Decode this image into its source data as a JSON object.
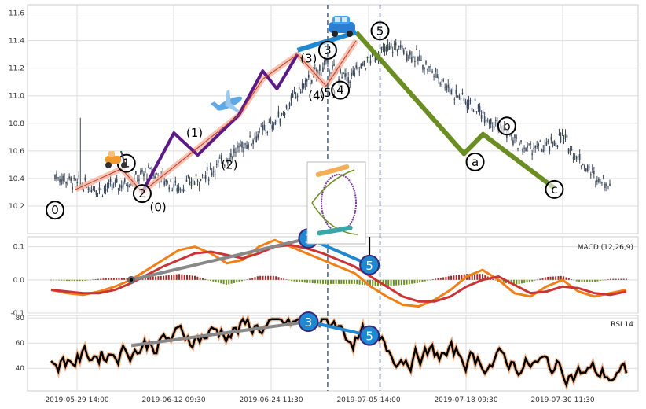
{
  "chart_data": [
    {
      "type": "candlestick",
      "panel": "price",
      "ylim": [
        10.0,
        11.66
      ],
      "yticks": [
        10.2,
        10.4,
        10.6,
        10.8,
        11.0,
        11.2,
        11.4,
        11.6
      ],
      "x_tick_labels": [
        "2019-05-29 14:00",
        "2019-06-12 09:30",
        "2019-06-24 11:30",
        "2019-07-05 14:00",
        "2019-07-18 09:30",
        "2019-07-30 11:30"
      ],
      "trend": {
        "x": [
          0,
          15,
          30,
          45,
          60,
          78,
          95,
          108,
          118,
          128,
          140,
          155,
          170,
          185,
          200,
          215,
          228,
          240,
          252,
          265,
          280,
          295,
          310,
          320,
          330,
          340,
          350
        ],
        "y": [
          10.42,
          10.36,
          10.32,
          10.37,
          10.45,
          10.33,
          10.42,
          10.55,
          10.63,
          10.72,
          10.82,
          11.05,
          11.22,
          11.12,
          11.28,
          11.36,
          11.28,
          11.16,
          11.02,
          10.92,
          10.78,
          10.62,
          10.62,
          10.7,
          10.55,
          10.42,
          10.36
        ]
      },
      "wave_lines": [
        {
          "name": "salmon",
          "color": "#f4b9a4",
          "points": [
            [
              13,
              10.32
            ],
            [
              42,
              10.47
            ],
            [
              55,
              10.3
            ],
            [
              116,
              10.86
            ],
            [
              131,
              11.12
            ],
            [
              153,
              11.3
            ],
            [
              171,
              11.07
            ],
            [
              190,
              11.4
            ]
          ]
        },
        {
          "name": "purple",
          "color": "#5b1a86",
          "points": [
            [
              55,
              10.3
            ],
            [
              75,
              10.73
            ],
            [
              90,
              10.57
            ],
            [
              116,
              10.86
            ],
            [
              131,
              11.18
            ],
            [
              140,
              11.05
            ],
            [
              153,
              11.3
            ]
          ]
        },
        {
          "name": "green",
          "color": "#6b8e23",
          "points": [
            [
              190,
              11.46
            ],
            [
              258,
              10.58
            ],
            [
              270,
              10.72
            ],
            [
              315,
              10.33
            ]
          ]
        },
        {
          "name": "blue",
          "color": "#1e88d2",
          "points": [
            [
              153,
              11.33
            ],
            [
              190,
              11.46
            ]
          ]
        }
      ],
      "wave_labels": [
        {
          "text": "0",
          "x": 0,
          "y": 10.17,
          "circled": true
        },
        {
          "text": "1",
          "x": 45,
          "y": 10.51,
          "circled": true
        },
        {
          "text": "2",
          "x": 55,
          "y": 10.29,
          "circled": true
        },
        {
          "text": "(0)",
          "x": 65,
          "y": 10.19,
          "circled": false
        },
        {
          "text": "(1)",
          "x": 88,
          "y": 10.73,
          "circled": false
        },
        {
          "text": "(2)",
          "x": 110,
          "y": 10.5,
          "circled": false
        },
        {
          "text": "(3)",
          "x": 160,
          "y": 11.27,
          "circled": false
        },
        {
          "text": "(4)",
          "x": 165,
          "y": 11.0,
          "circled": false
        },
        {
          "text": "3",
          "x": 172,
          "y": 11.33,
          "circled": true
        },
        {
          "text": "(5)",
          "x": 172,
          "y": 11.02,
          "circled": false
        },
        {
          "text": "4",
          "x": 180,
          "y": 11.04,
          "circled": true
        },
        {
          "text": "5",
          "x": 205,
          "y": 11.47,
          "circled": true
        },
        {
          "text": "a",
          "x": 265,
          "y": 10.52,
          "circled": true
        },
        {
          "text": "b",
          "x": 285,
          "y": 10.78,
          "circled": true
        },
        {
          "text": "c",
          "x": 315,
          "y": 10.32,
          "circled": true
        }
      ],
      "vertical_markers_x": [
        172,
        205
      ]
    },
    {
      "type": "macd",
      "panel": "macd",
      "label": "MACD (12,26,9)",
      "ylim": [
        -0.1,
        0.13
      ],
      "yticks": [
        -0.1,
        0.0,
        0.1
      ],
      "macd_line": [
        -0.03,
        -0.04,
        -0.045,
        -0.035,
        -0.02,
        0.0,
        0.03,
        0.06,
        0.09,
        0.1,
        0.08,
        0.05,
        0.06,
        0.1,
        0.12,
        0.1,
        0.08,
        0.06,
        0.04,
        0.02,
        -0.02,
        -0.05,
        -0.075,
        -0.08,
        -0.06,
        -0.03,
        0.01,
        0.03,
        0.0,
        -0.04,
        -0.05,
        -0.02,
        0.0,
        -0.035,
        -0.05,
        -0.04,
        -0.03
      ],
      "signal_line": [
        -0.03,
        -0.035,
        -0.04,
        -0.04,
        -0.03,
        -0.01,
        0.015,
        0.04,
        0.06,
        0.08,
        0.085,
        0.075,
        0.065,
        0.08,
        0.1,
        0.105,
        0.095,
        0.08,
        0.06,
        0.04,
        0.01,
        -0.02,
        -0.05,
        -0.065,
        -0.065,
        -0.05,
        -0.02,
        0.0,
        0.01,
        -0.015,
        -0.04,
        -0.035,
        -0.02,
        -0.025,
        -0.04,
        -0.045,
        -0.035
      ],
      "trend_lines": [
        {
          "color": "#888888",
          "from": [
            0.17,
            0.0
          ],
          "to": [
            0.46,
            0.125
          ]
        },
        {
          "color": "#1e88d2",
          "from": [
            0.46,
            0.125
          ],
          "to": [
            0.56,
            0.045
          ]
        }
      ],
      "markers": [
        {
          "text": "3",
          "x": 0.46,
          "y": 0.125
        },
        {
          "text": "5",
          "x": 0.56,
          "y": 0.045
        }
      ]
    },
    {
      "type": "line",
      "panel": "rsi",
      "label": "RSI 14",
      "ylim": [
        22,
        82
      ],
      "yticks": [
        40,
        60,
        80
      ],
      "trend_lines": [
        {
          "color": "#888888",
          "from": [
            0.17,
            58
          ],
          "to": [
            0.46,
            77
          ]
        },
        {
          "color": "#1e88d2",
          "from": [
            0.46,
            77
          ],
          "to": [
            0.56,
            66
          ]
        }
      ],
      "markers": [
        {
          "text": "3",
          "x": 0.46,
          "y": 77
        },
        {
          "text": "5",
          "x": 0.56,
          "y": 66
        }
      ]
    }
  ],
  "icons": [
    "scooter-icon",
    "airplane-icon",
    "car-icon",
    "roller-coaster-icon"
  ]
}
